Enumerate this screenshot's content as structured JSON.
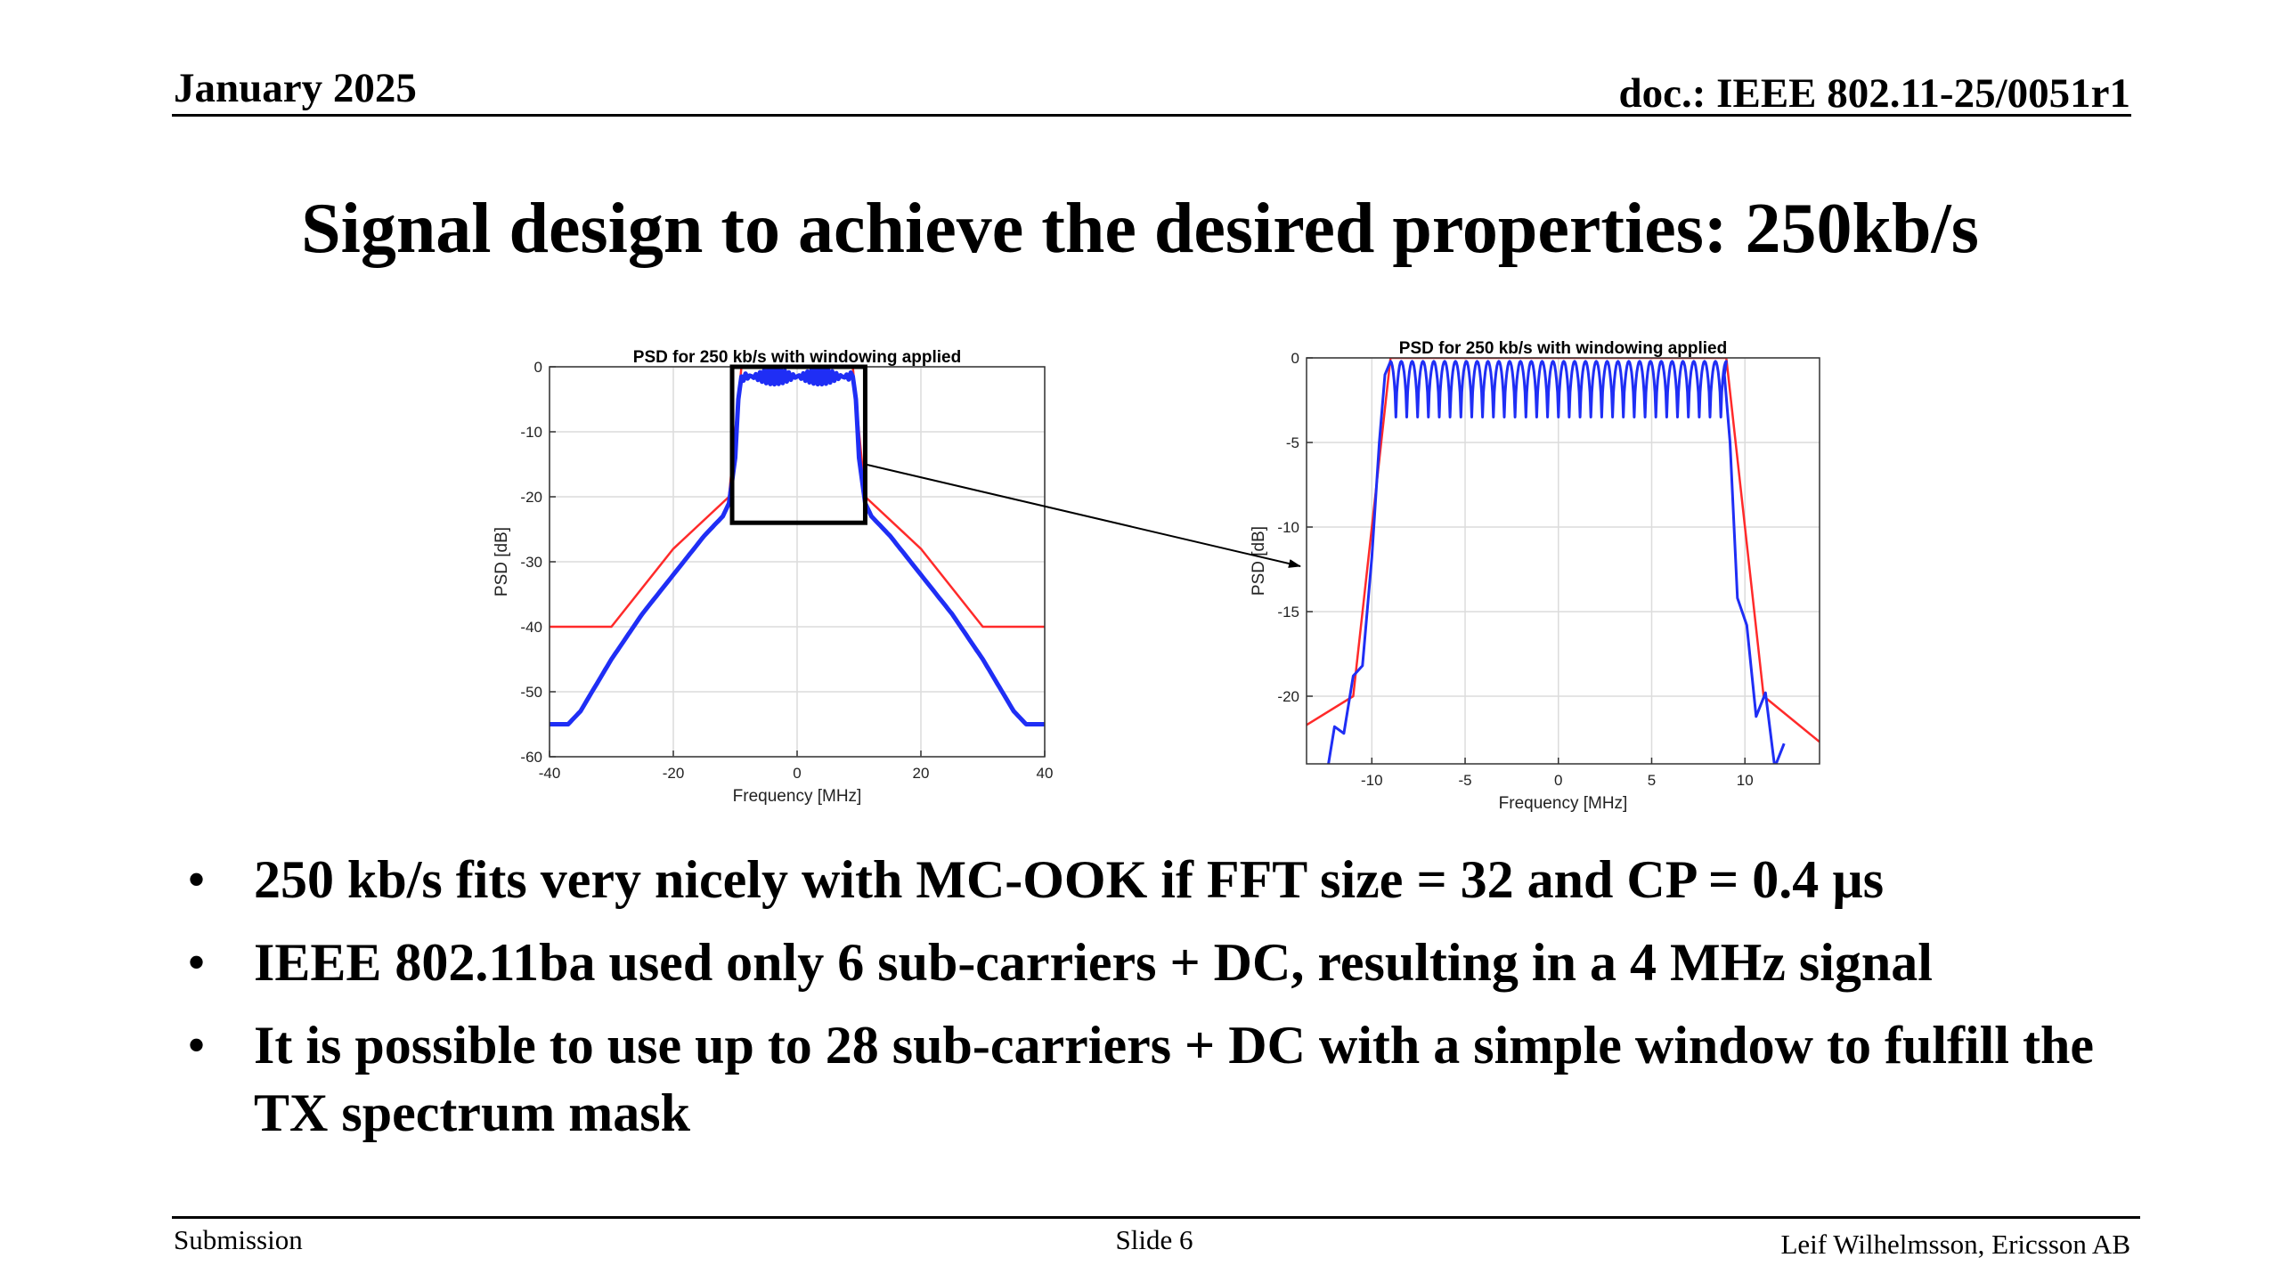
{
  "header": {
    "date": "January 2025",
    "doc_id": "doc.: IEEE 802.11-25/0051r1"
  },
  "title": "Signal design to achieve the desired properties: 250kb/s",
  "colors": {
    "psd": "#1f2ef5",
    "mask": "#ff2a2a",
    "grid": "#dcdcdc"
  },
  "chart_data": [
    {
      "type": "line",
      "title": "PSD for 250 kb/s with windowing applied",
      "xlabel": "Frequency [MHz]",
      "ylabel": "PSD [dB]",
      "xlim": [
        -40,
        40
      ],
      "ylim": [
        -60,
        0
      ],
      "xticks": [
        "-40",
        "-20",
        "0",
        "20",
        "40"
      ],
      "yticks": [
        "0",
        "-10",
        "-20",
        "-30",
        "-40",
        "-50",
        "-60"
      ],
      "grid": true,
      "series": [
        {
          "role": "spectrum mask",
          "color": "#ff2a2a",
          "x": [
            -40,
            -30,
            -20,
            -11,
            -9,
            9,
            11,
            20,
            30,
            40
          ],
          "y": [
            -40,
            -40,
            -28,
            -20,
            0,
            0,
            -20,
            -28,
            -40,
            -40
          ]
        },
        {
          "role": "windowed PSD",
          "color": "#1f2ef5",
          "x": [
            -40,
            -37,
            -35,
            -30,
            -25,
            -20,
            -15,
            -12,
            -11,
            -10,
            -9.5,
            -9,
            9,
            9.5,
            10,
            11,
            12,
            15,
            20,
            25,
            30,
            35,
            37,
            40
          ],
          "y": [
            -55,
            -55,
            -53,
            -45,
            -38,
            -32,
            -26,
            -23,
            -21,
            -14,
            -5,
            -1.5,
            -1.5,
            -5,
            -14,
            -21,
            -23,
            -26,
            -32,
            -38,
            -45,
            -53,
            -55,
            -55
          ]
        }
      ],
      "zoom_box": {
        "x": [
          -10.5,
          11
        ],
        "y": [
          -24,
          0
        ]
      }
    },
    {
      "type": "line",
      "title": "PSD for 250 kb/s with windowing applied",
      "xlabel": "Frequency [MHz]",
      "ylabel": "PSD [dB]",
      "xlim": [
        -13.5,
        14
      ],
      "ylim": [
        -24,
        0
      ],
      "xticks": [
        "-10",
        "-5",
        "0",
        "5",
        "10"
      ],
      "yticks": [
        "0",
        "-5",
        "-10",
        "-15",
        "-20"
      ],
      "grid": true,
      "series": [
        {
          "role": "spectrum mask",
          "color": "#ff2a2a",
          "x": [
            -13.5,
            -11,
            -9,
            9,
            11,
            14
          ],
          "y": [
            -21.7,
            -20,
            0,
            0,
            -20,
            -22.7
          ]
        },
        {
          "role": "windowed PSD",
          "color": "#1f2ef5",
          "ripple": {
            "x_from": -9,
            "x_to": 9,
            "top": -0.2,
            "bottom": -3.5,
            "lobes": 31
          },
          "left_edge_x": [
            -12.5,
            -12,
            -11.5,
            -11,
            -10.5,
            -10,
            -9.6,
            -9.3
          ],
          "left_edge_y": [
            -24,
            -23,
            -21,
            -20,
            -17,
            -13,
            -5,
            -1
          ]
        }
      ]
    }
  ],
  "bullets": [
    "250 kb/s fits very nicely with MC-OOK if FFT size = 32 and CP = 0.4 µs",
    "IEEE 802.11ba used only 6 sub-carriers + DC, resulting in a 4 MHz signal",
    "It is possible to use up to 28 sub-carriers + DC with a simple window to fulfill the TX spectrum mask"
  ],
  "bullet_symbol": "•",
  "footer": {
    "left": "Submission",
    "center": "Slide 6",
    "right": "Leif Wilhelmsson, Ericsson AB"
  }
}
